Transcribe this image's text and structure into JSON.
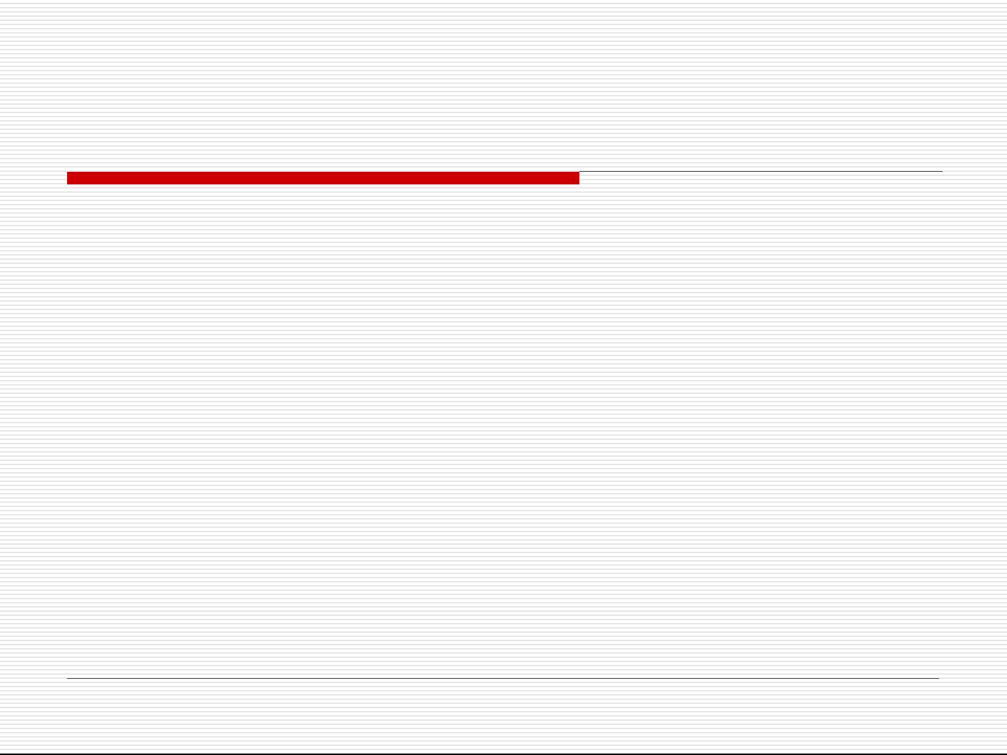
{
  "slide": {
    "accent_color": "#cc0000",
    "background_color": "#ffffff",
    "stripe_color": "#e6e6e6"
  }
}
